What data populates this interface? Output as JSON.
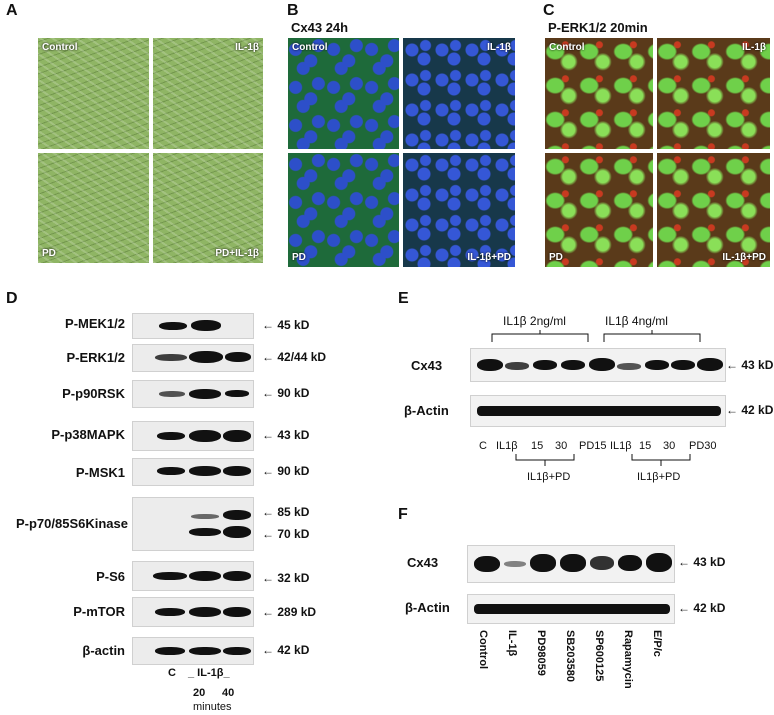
{
  "panelA": {
    "letter": "A",
    "labels": {
      "tl": "Control",
      "tr": "IL-1β",
      "bl": "PD",
      "br": "PD+IL-1β"
    }
  },
  "panelB": {
    "letter": "B",
    "title": "Cx43 24h",
    "labels": {
      "tl": "Control",
      "tr": "IL-1β",
      "bl": "PD",
      "br": "IL-1β+PD"
    }
  },
  "panelC": {
    "letter": "C",
    "title": "P-ERK1/2 20min",
    "labels": {
      "tl": "Control",
      "tr": "IL-1β",
      "bl": "PD",
      "br": "IL-1β+PD"
    }
  },
  "panelD": {
    "letter": "D",
    "rows": [
      {
        "label": "P-MEK1/2",
        "sizes": [
          "45 kD"
        ]
      },
      {
        "label": "P-ERK1/2",
        "sizes": [
          "42/44 kD"
        ]
      },
      {
        "label": "P-p90RSK",
        "sizes": [
          "90 kD"
        ]
      },
      {
        "label": "P-p38MAPK",
        "sizes": [
          "43 kD"
        ]
      },
      {
        "label": "P-MSK1",
        "sizes": [
          "90 kD"
        ]
      },
      {
        "label": "P-p70/85S6Kinase",
        "sizes": [
          "85 kD",
          "70 kD"
        ]
      },
      {
        "label": "P-S6",
        "sizes": [
          "32 kD"
        ]
      },
      {
        "label": "P-mTOR",
        "sizes": [
          "289 kD"
        ]
      },
      {
        "label": "β-actin",
        "sizes": [
          "42 kD"
        ]
      }
    ],
    "xlabels": {
      "c": "C",
      "il": "_ IL-1β_",
      "t20": "20",
      "t40": "40",
      "unit": "minutes"
    }
  },
  "panelE": {
    "letter": "E",
    "group1": "IL1β 2ng/ml",
    "group2": "IL1β 4ng/ml",
    "rows": [
      {
        "label": "Cx43",
        "size": "43 kD"
      },
      {
        "label": "β-Actin",
        "size": "42 kD"
      }
    ],
    "lanes": [
      "C",
      "IL1β",
      "15",
      "30",
      "PD15",
      "IL1β",
      "15",
      "30",
      "PD30"
    ],
    "sub1": "IL1β+PD",
    "sub2": "IL1β+PD"
  },
  "panelF": {
    "letter": "F",
    "rows": [
      {
        "label": "Cx43",
        "size": "43 kD"
      },
      {
        "label": "β-Actin",
        "size": "42 kD"
      }
    ],
    "lanes": [
      "Control",
      "IL-1β",
      "PD98059",
      "SB203580",
      "SP600125",
      "Rapamycin",
      "E/P/c"
    ]
  }
}
